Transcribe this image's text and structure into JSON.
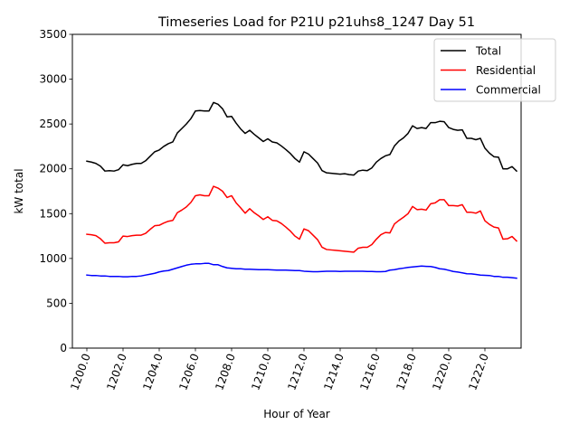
{
  "chart_data": {
    "type": "line",
    "title": "Timeseries Load for P21U p21uhs8_1247  Day 51",
    "xlabel": "Hour of Year",
    "ylabel": "kW total",
    "xlim": [
      1199.2,
      1224.0
    ],
    "ylim": [
      0,
      3500
    ],
    "xticks": [
      1200,
      1202,
      1204,
      1206,
      1208,
      1210,
      1212,
      1214,
      1216,
      1218,
      1220,
      1222
    ],
    "xtick_labels": [
      "1200.0",
      "1202.0",
      "1204.0",
      "1206.0",
      "1208.0",
      "1210.0",
      "1212.0",
      "1214.0",
      "1216.0",
      "1218.0",
      "1220.0",
      "1222.0"
    ],
    "yticks": [
      0,
      500,
      1000,
      1500,
      2000,
      2500,
      3000,
      3500
    ],
    "ytick_labels": [
      "0",
      "500",
      "1000",
      "1500",
      "2000",
      "2500",
      "3000",
      "3500"
    ],
    "legend_position": "top-right",
    "x_start": 1200,
    "x_step": 0.25,
    "series": [
      {
        "name": "Total",
        "color": "#000000",
        "values": [
          2085,
          2075,
          2060,
          2030,
          1975,
          1980,
          1975,
          1990,
          2045,
          2035,
          2050,
          2060,
          2060,
          2090,
          2140,
          2190,
          2210,
          2250,
          2280,
          2300,
          2400,
          2450,
          2500,
          2560,
          2645,
          2650,
          2645,
          2645,
          2740,
          2720,
          2670,
          2580,
          2585,
          2510,
          2445,
          2395,
          2430,
          2385,
          2345,
          2305,
          2335,
          2300,
          2290,
          2255,
          2215,
          2170,
          2115,
          2075,
          2190,
          2165,
          2115,
          2065,
          1980,
          1955,
          1950,
          1945,
          1940,
          1945,
          1935,
          1930,
          1975,
          1985,
          1980,
          2010,
          2075,
          2115,
          2145,
          2160,
          2255,
          2310,
          2345,
          2395,
          2480,
          2450,
          2460,
          2450,
          2515,
          2515,
          2530,
          2525,
          2460,
          2440,
          2430,
          2435,
          2340,
          2340,
          2325,
          2340,
          2230,
          2175,
          2135,
          2130,
          2000,
          2000,
          2025,
          1975
        ]
      },
      {
        "name": "Residential",
        "color": "#ff0000",
        "values": [
          1270,
          1265,
          1255,
          1220,
          1170,
          1175,
          1175,
          1185,
          1250,
          1245,
          1255,
          1260,
          1260,
          1280,
          1325,
          1365,
          1370,
          1395,
          1415,
          1425,
          1510,
          1540,
          1575,
          1625,
          1700,
          1710,
          1700,
          1700,
          1805,
          1785,
          1750,
          1680,
          1700,
          1620,
          1565,
          1505,
          1555,
          1510,
          1475,
          1435,
          1465,
          1425,
          1420,
          1390,
          1350,
          1305,
          1250,
          1215,
          1330,
          1310,
          1260,
          1210,
          1125,
          1100,
          1095,
          1090,
          1085,
          1080,
          1075,
          1070,
          1115,
          1125,
          1125,
          1155,
          1215,
          1265,
          1290,
          1285,
          1385,
          1425,
          1460,
          1500,
          1580,
          1545,
          1550,
          1540,
          1610,
          1620,
          1655,
          1655,
          1590,
          1590,
          1585,
          1600,
          1515,
          1515,
          1505,
          1530,
          1420,
          1380,
          1350,
          1340,
          1215,
          1220,
          1245,
          1195
        ]
      },
      {
        "name": "Commercial",
        "color": "#0000ff",
        "values": [
          815,
          810,
          810,
          805,
          805,
          800,
          800,
          800,
          795,
          795,
          800,
          800,
          805,
          815,
          825,
          835,
          850,
          860,
          865,
          880,
          895,
          910,
          925,
          935,
          940,
          940,
          945,
          945,
          930,
          930,
          910,
          895,
          890,
          885,
          885,
          880,
          880,
          878,
          875,
          875,
          875,
          873,
          870,
          870,
          870,
          868,
          865,
          865,
          858,
          855,
          852,
          852,
          855,
          858,
          858,
          858,
          855,
          858,
          858,
          858,
          858,
          858,
          855,
          855,
          852,
          852,
          855,
          870,
          875,
          885,
          892,
          900,
          905,
          910,
          915,
          912,
          910,
          900,
          885,
          880,
          868,
          855,
          848,
          840,
          830,
          828,
          822,
          815,
          812,
          810,
          800,
          800,
          790,
          790,
          785,
          780
        ]
      }
    ]
  }
}
